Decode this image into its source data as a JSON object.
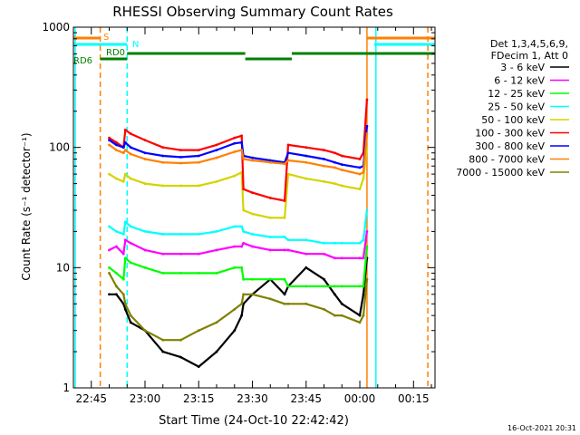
{
  "chart_data": {
    "type": "line",
    "title": "RHESSI Observing Summary Count Rates",
    "xlabel": "Start Time (24-Oct-10 22:42:42)",
    "ylabel": "Count Rate (s⁻¹ detector⁻¹)",
    "y_scale": "log",
    "ylim": [
      1,
      1000
    ],
    "xlim_minutes_after_2240": [
      0,
      101
    ],
    "x_tick_labels": [
      "22:45",
      "23:00",
      "23:15",
      "23:30",
      "23:45",
      "00:00",
      "00:15"
    ],
    "y_tick_labels": [
      "1",
      "10",
      "100",
      "1000"
    ],
    "footer_date": "16-Oct-2021 20:31",
    "legend": {
      "header": [
        "Det 1,3,4,5,6,9,",
        "FDecim 1, Att 0"
      ],
      "placement": "right",
      "entries": [
        {
          "label": "3 - 6 keV",
          "color": "#000000"
        },
        {
          "label": "6 - 12 keV",
          "color": "#ff00ff"
        },
        {
          "label": "12 - 25 keV",
          "color": "#00ff00"
        },
        {
          "label": "25 - 50 keV",
          "color": "#00ffff"
        },
        {
          "label": "50 - 100 keV",
          "color": "#d4d400"
        },
        {
          "label": "100 - 300 keV",
          "color": "#ff0000"
        },
        {
          "label": "300 - 800 keV",
          "color": "#0000ff"
        },
        {
          "label": "800 - 7000 keV",
          "color": "#ff8000"
        },
        {
          "label": "7000 - 15000 keV",
          "color": "#808000"
        }
      ]
    },
    "flags": [
      {
        "label": "S",
        "color": "#ff8000",
        "segments": [
          [
            0,
            7.5
          ],
          [
            82,
            101
          ]
        ]
      },
      {
        "label": "N",
        "color": "#00ffff",
        "segments": [
          [
            0,
            15
          ],
          [
            84,
            101
          ]
        ]
      },
      {
        "label": "RD0",
        "color": "#008000",
        "segments": [
          [
            15,
            48
          ],
          [
            61,
            101
          ]
        ]
      },
      {
        "label": "RD6",
        "color": "#008000",
        "segments": [
          [
            7.5,
            15
          ],
          [
            48,
            61
          ]
        ]
      }
    ],
    "vertical_markers": [
      {
        "x": 0.5,
        "color": "#00ffff",
        "style": "solid"
      },
      {
        "x": 7.5,
        "color": "#ff8000",
        "style": "dashed"
      },
      {
        "x": 15,
        "color": "#00ffff",
        "style": "dashed"
      },
      {
        "x": 82,
        "color": "#ff8000",
        "style": "solid"
      },
      {
        "x": 84.5,
        "color": "#00ffff",
        "style": "solid"
      },
      {
        "x": 99,
        "color": "#ff8000",
        "style": "dashed"
      }
    ],
    "x_minutes_after_2240": [
      10,
      12,
      14,
      14.5,
      16,
      20,
      25,
      30,
      35,
      40,
      45,
      47,
      47.5,
      50,
      55,
      59,
      60,
      65,
      70,
      73,
      75,
      80,
      81,
      82,
      84
    ],
    "series": [
      {
        "name": "3 - 6 keV",
        "color": "#000000",
        "values": [
          6,
          6,
          5,
          4.5,
          3.5,
          3,
          2,
          1.8,
          1.5,
          2,
          3,
          4,
          5,
          6,
          8,
          6,
          7,
          10,
          8,
          6,
          5,
          4,
          6,
          12,
          null
        ]
      },
      {
        "name": "6 - 12 keV",
        "color": "#ff00ff",
        "values": [
          14,
          15,
          13,
          17,
          16,
          14,
          13,
          13,
          13,
          14,
          15,
          15,
          16,
          15,
          14,
          14,
          14,
          13,
          13,
          12,
          12,
          12,
          12,
          20,
          null
        ]
      },
      {
        "name": "12 - 25 keV",
        "color": "#00ff00",
        "values": [
          10,
          9,
          8,
          12,
          11,
          10,
          9,
          9,
          9,
          9,
          10,
          10,
          8,
          8,
          8,
          8,
          7,
          7,
          7,
          7,
          7,
          7,
          7,
          15,
          null
        ]
      },
      {
        "name": "25 - 50 keV",
        "color": "#00ffff",
        "values": [
          22,
          20,
          19,
          24,
          22,
          20,
          19,
          19,
          19,
          20,
          22,
          22,
          20,
          19,
          18,
          18,
          17,
          17,
          16,
          16,
          16,
          16,
          17,
          30,
          null
        ]
      },
      {
        "name": "50 - 100 keV",
        "color": "#d4d400",
        "values": [
          60,
          55,
          52,
          60,
          55,
          50,
          48,
          48,
          48,
          52,
          58,
          62,
          30,
          28,
          26,
          26,
          60,
          55,
          52,
          50,
          48,
          45,
          55,
          100,
          null
        ]
      },
      {
        "name": "100 - 300 keV",
        "color": "#ff0000",
        "values": [
          120,
          110,
          100,
          140,
          130,
          115,
          100,
          95,
          95,
          105,
          120,
          125,
          45,
          42,
          38,
          36,
          105,
          100,
          95,
          90,
          85,
          80,
          90,
          250,
          null
        ]
      },
      {
        "name": "300 - 800 keV",
        "color": "#0000ff",
        "values": [
          115,
          105,
          100,
          110,
          100,
          90,
          85,
          83,
          85,
          95,
          108,
          110,
          85,
          82,
          78,
          75,
          90,
          85,
          80,
          75,
          72,
          68,
          70,
          150,
          null
        ]
      },
      {
        "name": "800 - 7000 keV",
        "color": "#ff8000",
        "values": [
          105,
          95,
          90,
          95,
          88,
          80,
          75,
          74,
          75,
          82,
          92,
          95,
          80,
          78,
          75,
          73,
          78,
          75,
          70,
          68,
          65,
          60,
          62,
          130,
          null
        ]
      },
      {
        "name": "7000 - 15000 keV",
        "color": "#808000",
        "values": [
          9,
          7,
          6,
          5,
          4,
          3,
          2.5,
          2.5,
          3,
          3.5,
          4.5,
          5,
          6,
          6,
          5.5,
          5,
          5,
          5,
          4.5,
          4,
          4,
          3.5,
          4,
          8,
          null
        ]
      }
    ]
  }
}
